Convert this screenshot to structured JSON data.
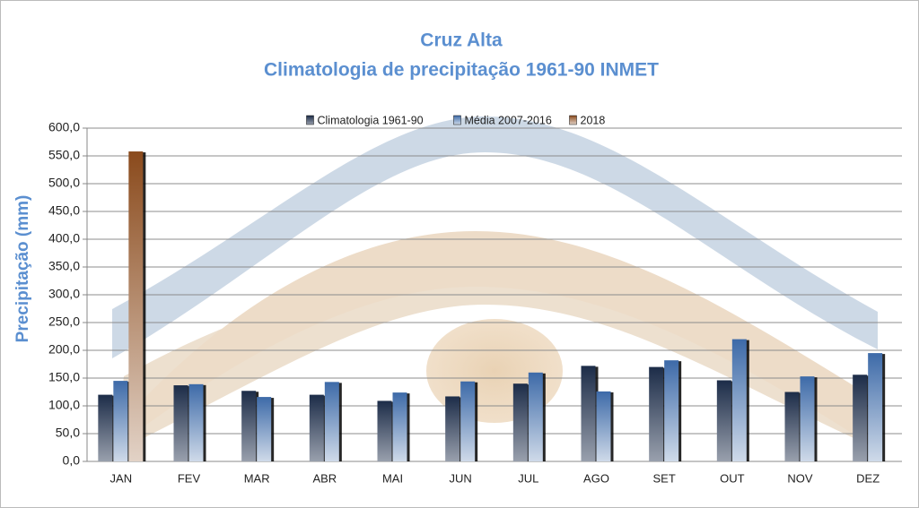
{
  "chart_data": {
    "type": "bar",
    "title": "Cruz Alta",
    "subtitle": "Climatologia de precipitação 1961-90 INMET",
    "y_label": "Precipitação (mm)",
    "categories": [
      "JAN",
      "FEV",
      "MAR",
      "ABR",
      "MAI",
      "JUN",
      "JUL",
      "AGO",
      "SET",
      "OUT",
      "NOV",
      "DEZ"
    ],
    "series": [
      {
        "name": "Climatologia 1961-90",
        "color": "#1c2c48",
        "values": [
          120,
          137,
          127,
          120,
          109,
          117,
          140,
          172,
          170,
          146,
          125,
          156
        ]
      },
      {
        "name": "Média 2007-2016",
        "color": "#3d6aa8",
        "values": [
          145,
          139,
          116,
          143,
          124,
          144,
          160,
          126,
          182,
          220,
          153,
          195
        ]
      },
      {
        "name": "2018",
        "color": "#8a4a1c",
        "values": [
          558,
          null,
          null,
          null,
          null,
          null,
          null,
          null,
          null,
          null,
          null,
          null
        ]
      }
    ],
    "ylim": [
      0,
      600
    ],
    "yticks": [
      {
        "value": 0,
        "label": "0,0"
      },
      {
        "value": 50,
        "label": "50,0"
      },
      {
        "value": 100,
        "label": "100,0"
      },
      {
        "value": 150,
        "label": "150,0"
      },
      {
        "value": 200,
        "label": "200,0"
      },
      {
        "value": 250,
        "label": "250,0"
      },
      {
        "value": 300,
        "label": "300,0"
      },
      {
        "value": 350,
        "label": "350,0"
      },
      {
        "value": 400,
        "label": "400,0"
      },
      {
        "value": 450,
        "label": "450,0"
      },
      {
        "value": 500,
        "label": "500,0"
      },
      {
        "value": 550,
        "label": "550,0"
      },
      {
        "value": 600,
        "label": "600,0"
      }
    ],
    "grid": true,
    "legend": "top"
  }
}
